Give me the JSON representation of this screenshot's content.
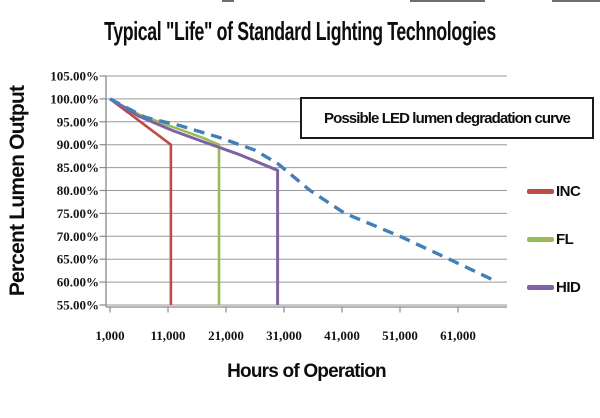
{
  "page": {
    "background": "#ffffff"
  },
  "chart_data": {
    "type": "line",
    "title": "Typical \"Life\" of Standard Lighting Technologies",
    "xlabel": "Hours of Operation",
    "ylabel": "Percent Lumen Output",
    "annotation": "Possible LED lumen degradation curve",
    "grid": true,
    "legend_position": "right",
    "x_axis": {
      "min": 1000,
      "max": 69500,
      "ticks": [
        {
          "v": 1000,
          "label": "1,000"
        },
        {
          "v": 11000,
          "label": "11,000"
        },
        {
          "v": 21000,
          "label": "21,000"
        },
        {
          "v": 31000,
          "label": "31,000"
        },
        {
          "v": 41000,
          "label": "41,000"
        },
        {
          "v": 51000,
          "label": "51,000"
        },
        {
          "v": 61000,
          "label": "61,000"
        }
      ]
    },
    "y_axis": {
      "min": 55,
      "max": 105,
      "ticks": [
        {
          "v": 105,
          "label": "105.00%"
        },
        {
          "v": 100,
          "label": "100.00%"
        },
        {
          "v": 95,
          "label": "95.00%"
        },
        {
          "v": 90,
          "label": "90.00%"
        },
        {
          "v": 85,
          "label": "85.00%"
        },
        {
          "v": 80,
          "label": "80.00%"
        },
        {
          "v": 75,
          "label": "75.00%"
        },
        {
          "v": 70,
          "label": "70.00%"
        },
        {
          "v": 65,
          "label": "65.00%"
        },
        {
          "v": 60,
          "label": "60.00%"
        },
        {
          "v": 55,
          "label": "55.00%"
        }
      ]
    },
    "series": [
      {
        "name": "INC",
        "color": "#BE4B48",
        "style": "solid",
        "width": 2.6,
        "in_legend": true,
        "points": [
          [
            1000,
            100
          ],
          [
            11500,
            90
          ],
          [
            11500,
            55
          ]
        ]
      },
      {
        "name": "FL",
        "color": "#9BBB59",
        "style": "solid",
        "width": 2.6,
        "in_legend": true,
        "points": [
          [
            1000,
            100
          ],
          [
            6000,
            96.6
          ],
          [
            12000,
            93.8
          ],
          [
            17000,
            91.5
          ],
          [
            19800,
            90
          ],
          [
            19800,
            55
          ]
        ]
      },
      {
        "name": "HID",
        "color": "#7E62A1",
        "style": "solid",
        "width": 3,
        "in_legend": true,
        "points": [
          [
            1000,
            100
          ],
          [
            6000,
            96.2
          ],
          [
            12000,
            93
          ],
          [
            17400,
            90.5
          ],
          [
            23000,
            88
          ],
          [
            29900,
            84.4
          ],
          [
            29900,
            55
          ]
        ]
      },
      {
        "name": "LED",
        "color": "#4380B8",
        "style": "dashed",
        "width": 3.4,
        "in_legend": false,
        "points": [
          [
            1000,
            100
          ],
          [
            7000,
            96
          ],
          [
            13000,
            94.2
          ],
          [
            20000,
            91.5
          ],
          [
            26000,
            88.8
          ],
          [
            30000,
            85.8
          ],
          [
            35500,
            80
          ],
          [
            41500,
            75
          ],
          [
            51000,
            70
          ],
          [
            59500,
            65
          ],
          [
            67000,
            60.5
          ]
        ]
      }
    ],
    "grid_color": "#9a9a9a",
    "axis_color": "#8a8a8a"
  }
}
